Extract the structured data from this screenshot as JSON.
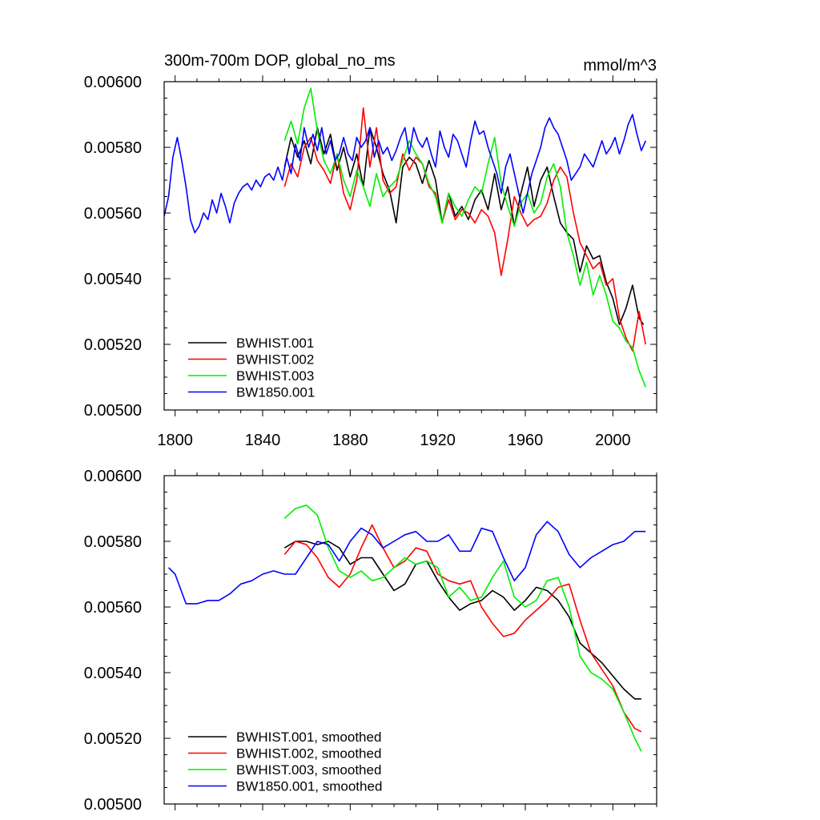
{
  "chart_data": [
    {
      "type": "line",
      "title": "300m-700m DOP, global_no_ms",
      "units": "mmol/m^3",
      "xlim": [
        1795,
        2020
      ],
      "ylim": [
        0.005,
        0.006
      ],
      "yticks": [
        "0.00500",
        "0.00520",
        "0.00540",
        "0.00560",
        "0.00580",
        "0.00600"
      ],
      "xticks": [
        "1800",
        "1840",
        "1880",
        "1920",
        "1960",
        "2000"
      ],
      "legend_position": "bottom-left",
      "series": [
        {
          "name": "BWHIST.001",
          "color": "#000000",
          "x": [
            1850,
            1853,
            1856,
            1859,
            1862,
            1865,
            1868,
            1871,
            1874,
            1877,
            1880,
            1883,
            1886,
            1889,
            1892,
            1895,
            1898,
            1901,
            1904,
            1907,
            1910,
            1913,
            1916,
            1919,
            1922,
            1925,
            1928,
            1931,
            1934,
            1937,
            1940,
            1943,
            1946,
            1949,
            1952,
            1955,
            1958,
            1961,
            1964,
            1967,
            1970,
            1973,
            1976,
            1979,
            1982,
            1985,
            1988,
            1991,
            1994,
            1997,
            2000,
            2003,
            2006,
            2009,
            2012,
            2014
          ],
          "y": [
            0.00574,
            0.00583,
            0.00577,
            0.00582,
            0.00575,
            0.00586,
            0.00578,
            0.00584,
            0.00573,
            0.0058,
            0.00571,
            0.00578,
            0.00568,
            0.00586,
            0.0058,
            0.00572,
            0.00567,
            0.00557,
            0.00574,
            0.00577,
            0.00575,
            0.00569,
            0.00576,
            0.0057,
            0.00557,
            0.00566,
            0.00559,
            0.00562,
            0.00558,
            0.00564,
            0.00567,
            0.00561,
            0.00572,
            0.00561,
            0.00568,
            0.00556,
            0.00566,
            0.00574,
            0.00562,
            0.0057,
            0.00574,
            0.00565,
            0.00557,
            0.00554,
            0.00552,
            0.00542,
            0.0055,
            0.00546,
            0.00547,
            0.00539,
            0.00534,
            0.00526,
            0.00531,
            0.00538,
            0.00528,
            0.00526
          ]
        },
        {
          "name": "BWHIST.002",
          "color": "#ff0000",
          "x": [
            1850,
            1853,
            1856,
            1859,
            1862,
            1865,
            1868,
            1871,
            1874,
            1877,
            1880,
            1883,
            1886,
            1889,
            1892,
            1895,
            1898,
            1901,
            1904,
            1907,
            1910,
            1913,
            1916,
            1919,
            1922,
            1925,
            1928,
            1931,
            1934,
            1937,
            1940,
            1943,
            1946,
            1949,
            1952,
            1955,
            1958,
            1961,
            1964,
            1967,
            1970,
            1973,
            1976,
            1979,
            1982,
            1985,
            1988,
            1991,
            1994,
            1997,
            2000,
            2003,
            2006,
            2009,
            2012,
            2015
          ],
          "y": [
            0.00568,
            0.00575,
            0.00571,
            0.0058,
            0.00583,
            0.00576,
            0.00573,
            0.00569,
            0.00578,
            0.00566,
            0.00561,
            0.0057,
            0.00592,
            0.00574,
            0.00586,
            0.0057,
            0.00566,
            0.00568,
            0.00578,
            0.00573,
            0.00577,
            0.00575,
            0.00568,
            0.00566,
            0.00557,
            0.00564,
            0.00558,
            0.00561,
            0.0056,
            0.00557,
            0.00561,
            0.00559,
            0.00554,
            0.00541,
            0.00552,
            0.00565,
            0.0056,
            0.00556,
            0.00558,
            0.00559,
            0.00563,
            0.0057,
            0.00574,
            0.00571,
            0.0056,
            0.00551,
            0.00547,
            0.00543,
            0.00545,
            0.00538,
            0.0054,
            0.00528,
            0.00522,
            0.00518,
            0.0053,
            0.0052
          ]
        },
        {
          "name": "BWHIST.003",
          "color": "#00ee00",
          "x": [
            1850,
            1853,
            1856,
            1859,
            1862,
            1865,
            1868,
            1871,
            1874,
            1877,
            1880,
            1883,
            1886,
            1889,
            1892,
            1895,
            1898,
            1901,
            1904,
            1907,
            1910,
            1913,
            1916,
            1919,
            1922,
            1925,
            1928,
            1931,
            1934,
            1937,
            1940,
            1943,
            1946,
            1949,
            1952,
            1955,
            1958,
            1961,
            1964,
            1967,
            1970,
            1973,
            1976,
            1979,
            1982,
            1985,
            1988,
            1991,
            1994,
            1997,
            2000,
            2003,
            2006,
            2009,
            2012,
            2015
          ],
          "y": [
            0.00582,
            0.00588,
            0.00581,
            0.00592,
            0.00598,
            0.00585,
            0.00576,
            0.00572,
            0.00578,
            0.0057,
            0.00565,
            0.00573,
            0.00568,
            0.00562,
            0.00572,
            0.00565,
            0.00568,
            0.0057,
            0.00576,
            0.00582,
            0.00578,
            0.00575,
            0.00569,
            0.00565,
            0.00557,
            0.00566,
            0.00562,
            0.00559,
            0.00564,
            0.00568,
            0.00566,
            0.00575,
            0.00583,
            0.00569,
            0.00562,
            0.00556,
            0.00563,
            0.00566,
            0.0056,
            0.00563,
            0.00571,
            0.00575,
            0.00568,
            0.00554,
            0.00547,
            0.00538,
            0.00545,
            0.00535,
            0.00541,
            0.00535,
            0.00527,
            0.00525,
            0.00521,
            0.00519,
            0.00512,
            0.00507
          ]
        },
        {
          "name": "BW1850.001",
          "color": "#0000ff",
          "x": [
            1795,
            1797,
            1799,
            1801,
            1803,
            1805,
            1807,
            1809,
            1811,
            1813,
            1815,
            1817,
            1819,
            1821,
            1823,
            1825,
            1827,
            1829,
            1831,
            1833,
            1835,
            1837,
            1839,
            1841,
            1843,
            1845,
            1847,
            1849,
            1851,
            1853,
            1855,
            1857,
            1859,
            1861,
            1863,
            1865,
            1867,
            1869,
            1871,
            1873,
            1875,
            1877,
            1879,
            1881,
            1883,
            1885,
            1887,
            1889,
            1891,
            1893,
            1895,
            1897,
            1899,
            1901,
            1903,
            1905,
            1907,
            1909,
            1911,
            1913,
            1915,
            1917,
            1919,
            1921,
            1923,
            1925,
            1927,
            1929,
            1931,
            1933,
            1935,
            1937,
            1939,
            1941,
            1943,
            1945,
            1947,
            1949,
            1951,
            1953,
            1955,
            1957,
            1959,
            1961,
            1963,
            1965,
            1967,
            1969,
            1971,
            1973,
            1975,
            1977,
            1979,
            1981,
            1983,
            1985,
            1987,
            1989,
            1991,
            1993,
            1995,
            1997,
            1999,
            2001,
            2003,
            2005,
            2007,
            2009,
            2011,
            2013,
            2015
          ],
          "y": [
            0.00559,
            0.00565,
            0.00577,
            0.00583,
            0.00576,
            0.00568,
            0.00558,
            0.00554,
            0.00556,
            0.0056,
            0.00558,
            0.00564,
            0.0056,
            0.00566,
            0.00562,
            0.00557,
            0.00563,
            0.00566,
            0.00568,
            0.00569,
            0.00567,
            0.0057,
            0.00568,
            0.00571,
            0.00572,
            0.0057,
            0.00574,
            0.0057,
            0.00577,
            0.00572,
            0.00581,
            0.00576,
            0.00586,
            0.0058,
            0.00584,
            0.00579,
            0.00586,
            0.00578,
            0.00582,
            0.00576,
            0.00578,
            0.00583,
            0.00578,
            0.00576,
            0.00583,
            0.0058,
            0.00582,
            0.00586,
            0.00577,
            0.00582,
            0.00578,
            0.0058,
            0.00576,
            0.00579,
            0.00583,
            0.00586,
            0.00578,
            0.00586,
            0.00582,
            0.0058,
            0.00583,
            0.00578,
            0.00574,
            0.00585,
            0.0058,
            0.00577,
            0.00584,
            0.00582,
            0.00578,
            0.00574,
            0.00582,
            0.00588,
            0.00584,
            0.00585,
            0.0058,
            0.00576,
            0.00572,
            0.00566,
            0.00574,
            0.00578,
            0.00572,
            0.00566,
            0.0056,
            0.00566,
            0.00572,
            0.00576,
            0.0058,
            0.00586,
            0.00589,
            0.00586,
            0.00584,
            0.0058,
            0.00576,
            0.0057,
            0.00572,
            0.00574,
            0.00578,
            0.00576,
            0.00574,
            0.00578,
            0.00582,
            0.00578,
            0.0058,
            0.00583,
            0.00578,
            0.00582,
            0.00587,
            0.0059,
            0.00584,
            0.00579,
            0.00582
          ]
        }
      ]
    },
    {
      "type": "line",
      "title": "",
      "xlim": [
        1795,
        2020
      ],
      "ylim": [
        0.005,
        0.006
      ],
      "yticks": [
        "0.00500",
        "0.00520",
        "0.00540",
        "0.00560",
        "0.00580",
        "0.00600"
      ],
      "xticks": [],
      "legend_position": "bottom-left",
      "series": [
        {
          "name": "BWHIST.001, smoothed",
          "color": "#000000",
          "x": [
            1850,
            1855,
            1860,
            1865,
            1870,
            1875,
            1880,
            1885,
            1890,
            1895,
            1900,
            1905,
            1910,
            1915,
            1920,
            1925,
            1930,
            1935,
            1940,
            1945,
            1950,
            1955,
            1960,
            1965,
            1970,
            1975,
            1980,
            1985,
            1990,
            1995,
            2000,
            2005,
            2010,
            2013
          ],
          "y": [
            0.00578,
            0.0058,
            0.0058,
            0.00579,
            0.0058,
            0.00578,
            0.00573,
            0.00575,
            0.00575,
            0.0057,
            0.00565,
            0.00567,
            0.00573,
            0.00574,
            0.00568,
            0.00563,
            0.00559,
            0.00561,
            0.00562,
            0.00565,
            0.00563,
            0.00559,
            0.00562,
            0.00566,
            0.00565,
            0.00562,
            0.00557,
            0.00549,
            0.00546,
            0.00543,
            0.00539,
            0.00535,
            0.00532,
            0.00532
          ]
        },
        {
          "name": "BWHIST.002, smoothed",
          "color": "#ff0000",
          "x": [
            1850,
            1855,
            1860,
            1865,
            1870,
            1875,
            1880,
            1885,
            1890,
            1895,
            1900,
            1905,
            1910,
            1915,
            1920,
            1925,
            1930,
            1935,
            1940,
            1945,
            1950,
            1955,
            1960,
            1965,
            1970,
            1975,
            1980,
            1985,
            1990,
            1995,
            2000,
            2005,
            2010,
            2013
          ],
          "y": [
            0.00576,
            0.0058,
            0.00579,
            0.00575,
            0.00569,
            0.00566,
            0.0057,
            0.00578,
            0.00585,
            0.00578,
            0.00572,
            0.00574,
            0.00578,
            0.00577,
            0.0057,
            0.00568,
            0.00567,
            0.00568,
            0.0056,
            0.00555,
            0.00551,
            0.00552,
            0.00556,
            0.00559,
            0.00562,
            0.00566,
            0.00567,
            0.00556,
            0.00546,
            0.00541,
            0.00536,
            0.00528,
            0.00523,
            0.00522
          ]
        },
        {
          "name": "BWHIST.003, smoothed",
          "color": "#00ee00",
          "x": [
            1850,
            1855,
            1860,
            1865,
            1870,
            1875,
            1880,
            1885,
            1890,
            1895,
            1900,
            1905,
            1910,
            1915,
            1920,
            1925,
            1930,
            1935,
            1940,
            1945,
            1950,
            1955,
            1960,
            1965,
            1970,
            1975,
            1980,
            1985,
            1990,
            1995,
            2000,
            2005,
            2010,
            2013
          ],
          "y": [
            0.00587,
            0.0059,
            0.00591,
            0.00588,
            0.00578,
            0.00571,
            0.00569,
            0.00571,
            0.00568,
            0.00569,
            0.00572,
            0.00575,
            0.00573,
            0.00574,
            0.00572,
            0.00563,
            0.00566,
            0.00562,
            0.00563,
            0.00569,
            0.00574,
            0.00563,
            0.0056,
            0.00562,
            0.00568,
            0.00569,
            0.0056,
            0.00545,
            0.0054,
            0.00538,
            0.00535,
            0.00528,
            0.0052,
            0.00516
          ]
        },
        {
          "name": "BW1850.001, smoothed",
          "color": "#0000ff",
          "x": [
            1797,
            1800,
            1805,
            1810,
            1815,
            1820,
            1825,
            1830,
            1835,
            1840,
            1845,
            1850,
            1855,
            1860,
            1865,
            1870,
            1875,
            1880,
            1885,
            1890,
            1895,
            1900,
            1905,
            1910,
            1915,
            1920,
            1925,
            1930,
            1935,
            1940,
            1945,
            1950,
            1955,
            1960,
            1965,
            1970,
            1975,
            1980,
            1985,
            1990,
            1995,
            2000,
            2005,
            2010,
            2015
          ],
          "y": [
            0.00572,
            0.0057,
            0.00561,
            0.00561,
            0.00562,
            0.00562,
            0.00564,
            0.00567,
            0.00568,
            0.0057,
            0.00571,
            0.0057,
            0.0057,
            0.00575,
            0.0058,
            0.00579,
            0.00574,
            0.0058,
            0.00584,
            0.00582,
            0.00578,
            0.0058,
            0.00582,
            0.00583,
            0.0058,
            0.0058,
            0.00582,
            0.00577,
            0.00577,
            0.00584,
            0.00583,
            0.00575,
            0.00568,
            0.00572,
            0.00582,
            0.00586,
            0.00583,
            0.00576,
            0.00572,
            0.00575,
            0.00577,
            0.00579,
            0.0058,
            0.00583,
            0.00583
          ]
        }
      ]
    }
  ]
}
